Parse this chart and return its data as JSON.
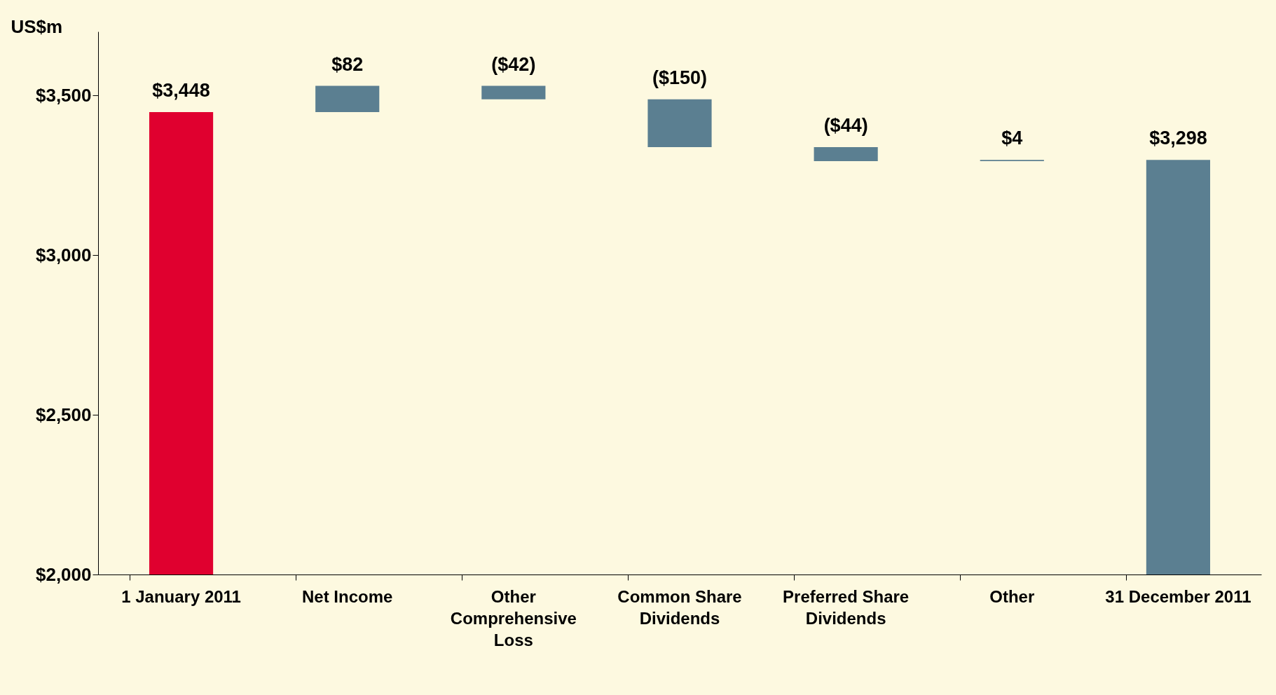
{
  "chart_data": {
    "type": "bar",
    "ylabel": "US$m",
    "categories": [
      "1 January 2011",
      "Net Income",
      "Other Comprehensive Loss",
      "Common Share Dividends",
      "Preferred Share Dividends",
      "Other",
      "31 December 2011"
    ],
    "values": [
      3448,
      82,
      -42,
      -150,
      -44,
      4,
      3298
    ],
    "base": [
      null,
      3448,
      3530,
      3488,
      3338,
      3294,
      null
    ],
    "colors": [
      "#e0002f",
      "#5b7f91",
      "#5b7f91",
      "#5b7f91",
      "#5b7f91",
      "#5b7f91",
      "#5b7f91"
    ],
    "value_labels": [
      "$3,448",
      "$82",
      "($42)",
      "($150)",
      "($44)",
      "$4",
      "$3,298"
    ],
    "ylim": [
      2000,
      3700
    ],
    "yticks": [
      {
        "value": 2000,
        "label": "$2,000"
      },
      {
        "value": 2500,
        "label": "$2,500"
      },
      {
        "value": 3000,
        "label": "$3,000"
      },
      {
        "value": 3500,
        "label": "$3,500"
      }
    ],
    "grid": false,
    "legend": false
  }
}
